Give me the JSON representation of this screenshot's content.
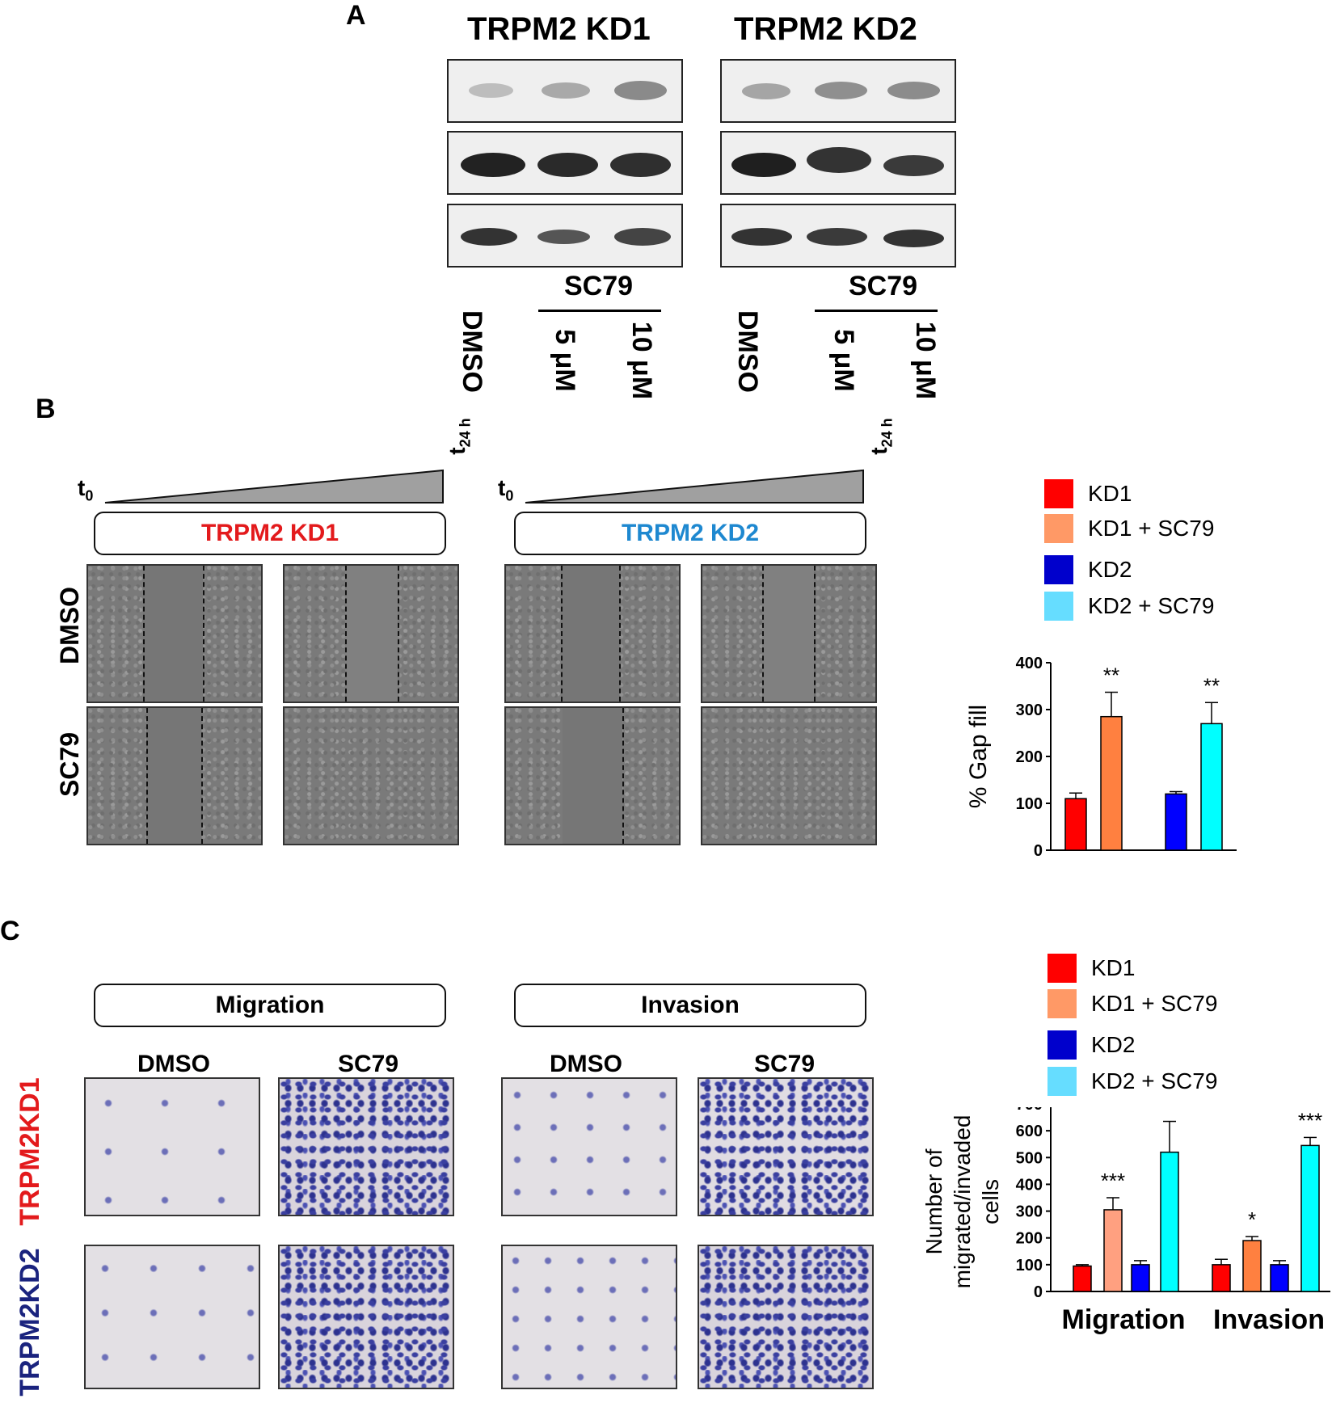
{
  "panel_a": {
    "letter": "A",
    "kd1_title": "TRPM2 KD1",
    "kd2_title": "TRPM2 KD2",
    "treatment_label": "SC79",
    "lanes": [
      "DMSO",
      "5 μM",
      "10 μM"
    ]
  },
  "panel_b": {
    "letter": "B",
    "t0": "t",
    "t0_sub": "0",
    "t24": "t",
    "t24_sub": "24 h",
    "kd1_label": "TRPM2 KD1",
    "kd2_label": "TRPM2 KD2",
    "row_labels": [
      "DMSO",
      "SC79"
    ],
    "legend": [
      {
        "label": "KD1",
        "color": "#ff0000"
      },
      {
        "label": "KD1 + SC79",
        "color": "#ff9966"
      },
      {
        "label": "KD2",
        "color": "#0000cc"
      },
      {
        "label": "KD2 + SC79",
        "color": "#66ddff"
      }
    ]
  },
  "panel_c": {
    "letter": "C",
    "migration_label": "Migration",
    "invasion_label": "Invasion",
    "col_labels": [
      "DMSO",
      "SC79",
      "DMSO",
      "SC79"
    ],
    "row_labels": [
      "TRPM2KD1",
      "TRPM2KD2"
    ],
    "row_colors": [
      "#e31a1c",
      "#1a237e"
    ],
    "legend": [
      {
        "label": "KD1",
        "color": "#ff0000"
      },
      {
        "label": "KD1 + SC79",
        "color": "#ff9966"
      },
      {
        "label": "KD2",
        "color": "#0000cc"
      },
      {
        "label": "KD2 + SC79",
        "color": "#66ddff"
      }
    ]
  },
  "chart_data": [
    {
      "type": "bar",
      "title": "",
      "xlabel": "",
      "ylabel": "% Gap fill",
      "ylim": [
        0,
        400
      ],
      "yticks": [
        0,
        100,
        200,
        300,
        400
      ],
      "bars": [
        {
          "name": "KD1",
          "value": 110,
          "error": 12,
          "color": "#ff0000",
          "sig": ""
        },
        {
          "name": "KD1 + SC79",
          "value": 285,
          "error": 52,
          "color": "#ff8040",
          "sig": "**"
        },
        {
          "name": "KD2",
          "value": 120,
          "error": 5,
          "color": "#0000ff",
          "sig": ""
        },
        {
          "name": "KD2 + SC79",
          "value": 270,
          "error": 45,
          "color": "#00ffff",
          "sig": "**"
        }
      ]
    },
    {
      "type": "bar",
      "title": "",
      "xlabel": "",
      "ylabel": "Number of migrated/invaded cells",
      "ylabel_lines": [
        "Number of",
        "migrated/invaded",
        "cells"
      ],
      "ylim": [
        0,
        700
      ],
      "yticks": [
        0,
        100,
        200,
        300,
        400,
        500,
        600,
        700
      ],
      "categories": [
        "Migration",
        "Invasion"
      ],
      "groups": [
        {
          "category": "Migration",
          "bars": [
            {
              "name": "KD1",
              "value": 95,
              "error": 5,
              "color": "#ff0000",
              "sig": ""
            },
            {
              "name": "KD1 + SC79",
              "value": 305,
              "error": 45,
              "color": "#ffa080",
              "sig": "***"
            },
            {
              "name": "KD2",
              "value": 100,
              "error": 15,
              "color": "#0000ff",
              "sig": ""
            },
            {
              "name": "KD2 + SC79",
              "value": 520,
              "error": 115,
              "color": "#00ffff",
              "sig": "***"
            }
          ]
        },
        {
          "category": "Invasion",
          "bars": [
            {
              "name": "KD1",
              "value": 100,
              "error": 20,
              "color": "#ff0000",
              "sig": ""
            },
            {
              "name": "KD1 + SC79",
              "value": 190,
              "error": 15,
              "color": "#ff8040",
              "sig": "*"
            },
            {
              "name": "KD2",
              "value": 100,
              "error": 15,
              "color": "#0000ff",
              "sig": ""
            },
            {
              "name": "KD2 + SC79",
              "value": 545,
              "error": 30,
              "color": "#00ffff",
              "sig": "***"
            }
          ]
        }
      ]
    }
  ]
}
